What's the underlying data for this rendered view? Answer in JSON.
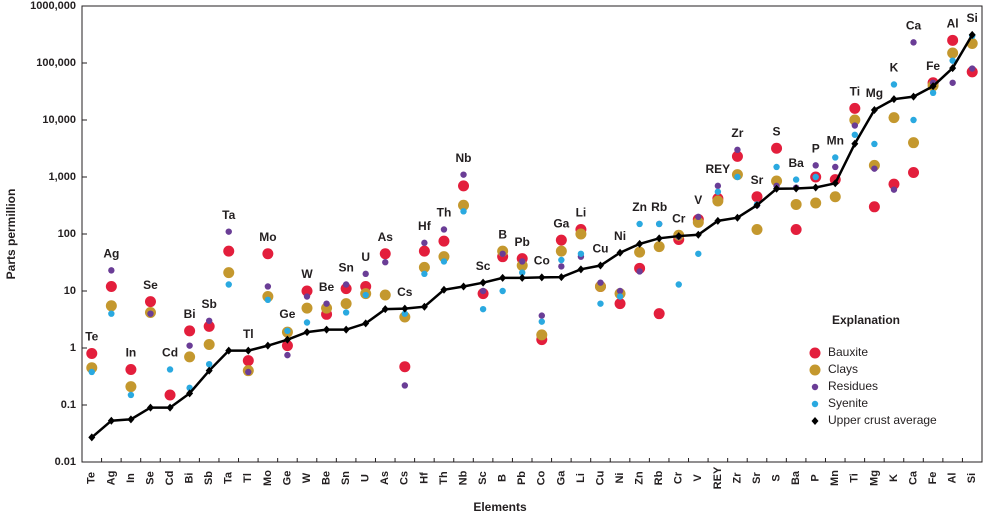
{
  "chart_data": {
    "type": "scatter",
    "y_label": "Parts permillion",
    "x_label": "Elements",
    "legend_title": "Explanation",
    "log_y": true,
    "ylim": [
      0.01,
      1000000
    ],
    "yticks": [
      0.01,
      0.1,
      1,
      10,
      100,
      {
        "value": 1000,
        "label": "1,000"
      },
      {
        "value": 10000,
        "label": "10,000"
      },
      {
        "value": 100000,
        "label": "100,000"
      },
      {
        "value": 1000000,
        "label": "1000,000"
      }
    ],
    "categories": [
      "Te",
      "Ag",
      "In",
      "Se",
      "Cd",
      "Bi",
      "Sb",
      "Ta",
      "Tl",
      "Mo",
      "Ge",
      "W",
      "Be",
      "Sn",
      "U",
      "As",
      "Cs",
      "Hf",
      "Th",
      "Nb",
      "Sc",
      "B",
      "Pb",
      "Co",
      "Ga",
      "Li",
      "Cu",
      "Ni",
      "Zn",
      "Rb",
      "Cr",
      "V",
      "REY",
      "Zr",
      "Sr",
      "S",
      "Ba",
      "P",
      "Mn",
      "Ti",
      "Mg",
      "K",
      "Ca",
      "Fe",
      "Al",
      "Si"
    ],
    "series": [
      {
        "name": "Bauxite",
        "color": "#e31e3c",
        "type": "scatter",
        "values": [
          0.8,
          12,
          0.42,
          6.5,
          0.15,
          2,
          2.4,
          50,
          0.6,
          45,
          1.1,
          10,
          3.9,
          11,
          12,
          45,
          0.47,
          50,
          75,
          700,
          9,
          40,
          37,
          1.4,
          78,
          120,
          12,
          6,
          25,
          4,
          80,
          180,
          420,
          2300,
          450,
          3200,
          120,
          1000,
          900,
          16000,
          300,
          750,
          1200,
          45000,
          250000,
          70000
        ]
      },
      {
        "name": "Clays",
        "color": "#c4982e",
        "type": "scatter",
        "values": [
          0.45,
          5.5,
          0.21,
          4.2,
          null,
          0.7,
          1.15,
          21,
          0.4,
          8,
          1.9,
          5,
          5,
          6,
          9,
          8.5,
          3.5,
          26,
          40,
          320,
          null,
          50,
          28,
          1.7,
          50,
          100,
          12,
          9,
          48,
          60,
          95,
          160,
          380,
          1100,
          120,
          850,
          330,
          350,
          450,
          10000,
          1600,
          11000,
          4000,
          40000,
          150000,
          220000
        ]
      },
      {
        "name": "Residues",
        "color": "#6a3d96",
        "type": "scatter",
        "values": [
          null,
          23,
          null,
          4,
          null,
          1.1,
          3,
          110,
          0.38,
          12,
          0.75,
          8,
          6,
          13,
          20,
          32,
          0.22,
          70,
          120,
          1100,
          10,
          45,
          33,
          3.7,
          27,
          40,
          14,
          10,
          22,
          150,
          90,
          200,
          700,
          3000,
          320,
          700,
          650,
          1600,
          1500,
          8000,
          1400,
          600,
          230000,
          45000,
          45000,
          80000
        ]
      },
      {
        "name": "Syenite",
        "color": "#2aa9e0",
        "type": "scatter",
        "values": [
          0.38,
          4,
          0.15,
          null,
          0.42,
          0.2,
          0.52,
          13,
          null,
          7,
          2,
          2.8,
          null,
          4.2,
          8.5,
          null,
          4,
          20,
          33,
          250,
          4.8,
          10,
          21,
          2.9,
          35,
          45,
          6,
          8,
          150,
          150,
          13,
          45,
          550,
          1000,
          330,
          1500,
          900,
          1000,
          2200,
          5500,
          3800,
          42000,
          10000,
          30000,
          110000,
          300000
        ]
      },
      {
        "name": "Upper crust average",
        "color": "#000000",
        "type": "line",
        "values": [
          0.027,
          0.053,
          0.056,
          0.09,
          0.09,
          0.16,
          0.4,
          0.9,
          0.9,
          1.1,
          1.4,
          1.9,
          2.1,
          2.1,
          2.7,
          4.8,
          4.9,
          5.3,
          10.5,
          12,
          14,
          17,
          17,
          17.3,
          17.5,
          24,
          28,
          47,
          67,
          84,
          92,
          97,
          170,
          193,
          320,
          621,
          628,
          655,
          775,
          3840,
          15000,
          23200,
          25700,
          39200,
          81500,
          311000
        ]
      }
    ]
  }
}
